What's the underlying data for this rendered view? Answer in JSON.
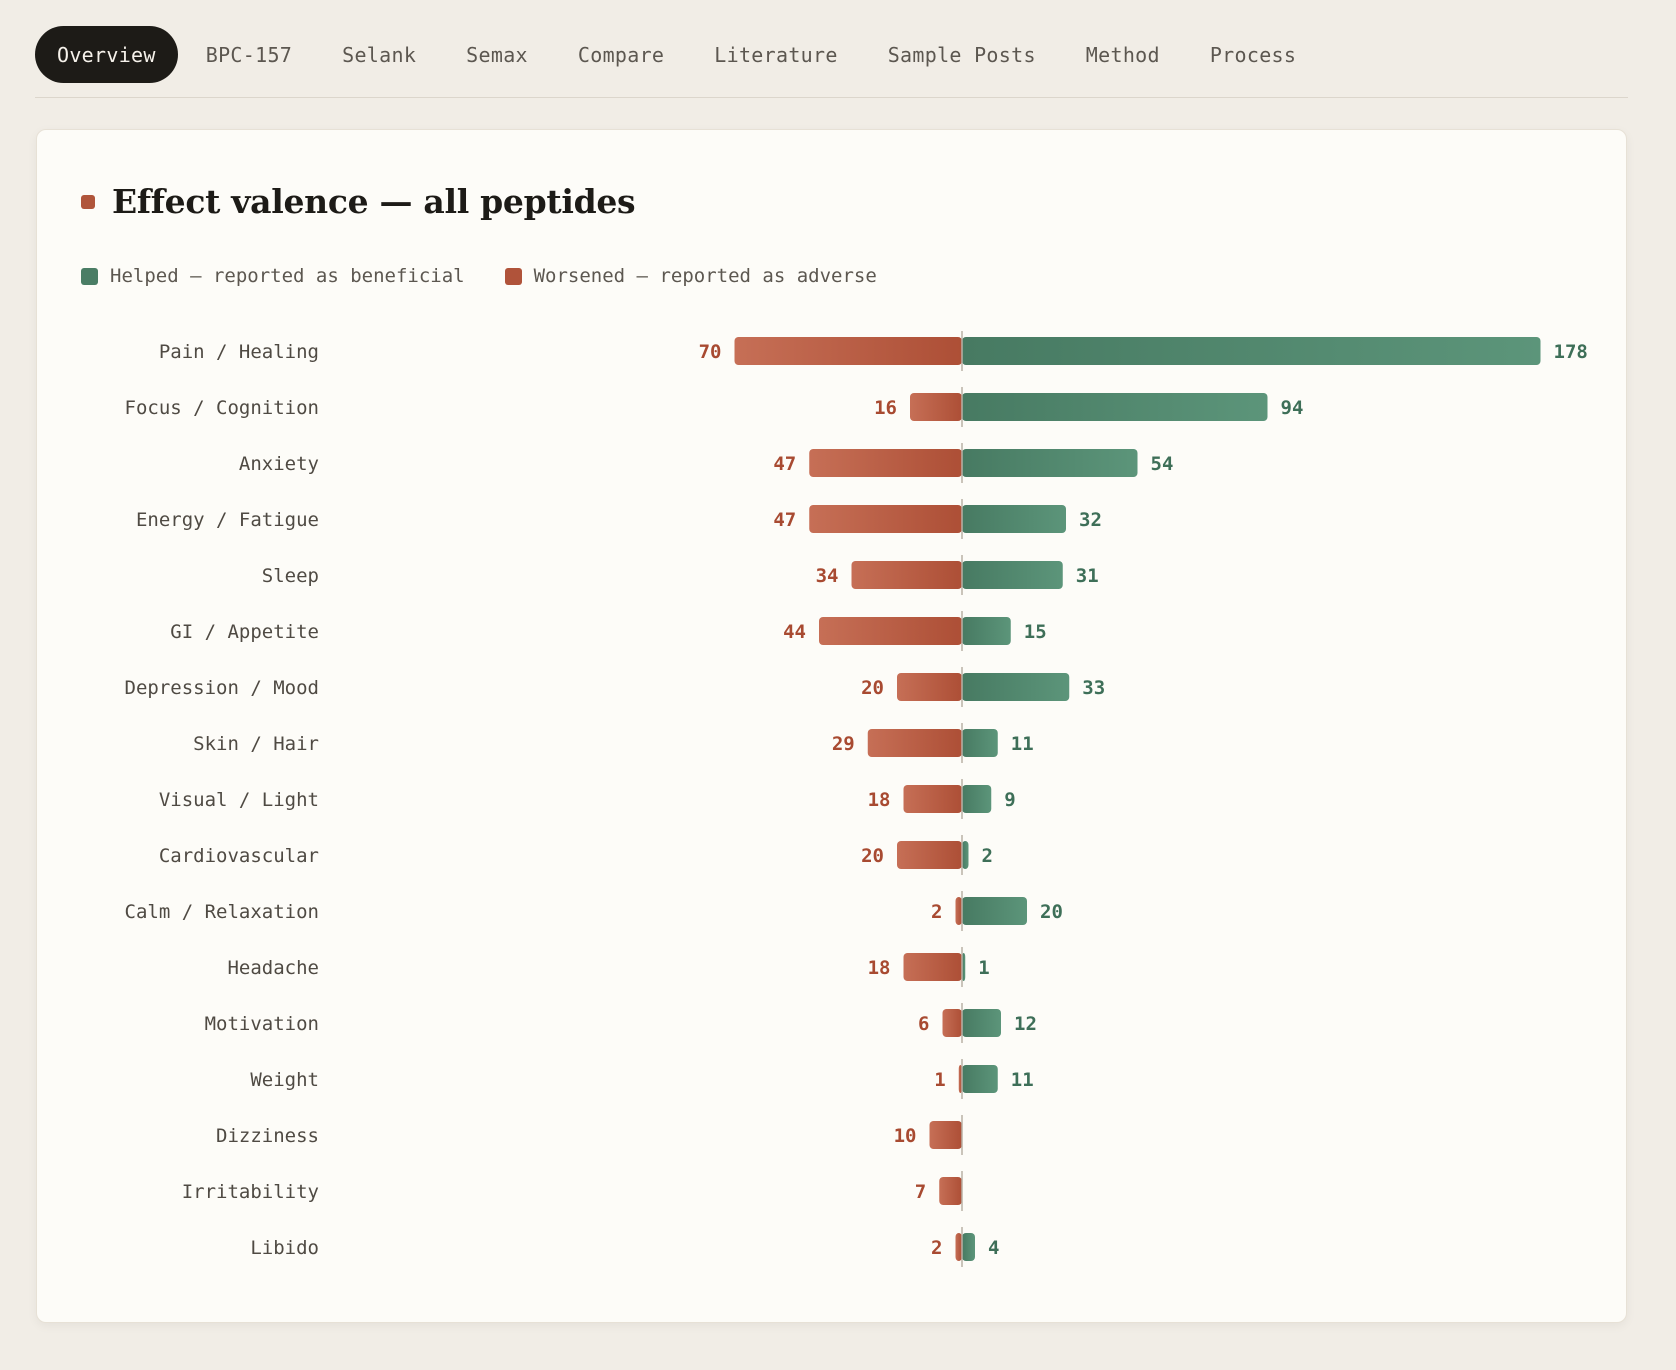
{
  "tabs": [
    {
      "label": "Overview",
      "active": true
    },
    {
      "label": "BPC-157"
    },
    {
      "label": "Selank"
    },
    {
      "label": "Semax"
    },
    {
      "label": "Compare"
    },
    {
      "label": "Literature"
    },
    {
      "label": "Sample Posts"
    },
    {
      "label": "Method"
    },
    {
      "label": "Process"
    }
  ],
  "card": {
    "title": "Effect valence — all peptides",
    "legend": {
      "helped": "Helped — reported as beneficial",
      "worsened": "Worsened — reported as adverse"
    }
  },
  "colors": {
    "helped": "#4a7d65",
    "helped_light": "#5b9479",
    "worsened": "#b0533a",
    "worsened_light": "#c46c53",
    "helped_text": "#3e6f58",
    "worsened_text": "#a84a31",
    "active_tab": "#1d1b17"
  },
  "chart_data": {
    "type": "bar",
    "orientation": "horizontal-diverging",
    "categories": [
      "Pain / Healing",
      "Focus / Cognition",
      "Anxiety",
      "Energy / Fatigue",
      "Sleep",
      "GI / Appetite",
      "Depression / Mood",
      "Skin / Hair",
      "Visual / Light",
      "Cardiovascular",
      "Calm / Relaxation",
      "Headache",
      "Motivation",
      "Weight",
      "Dizziness",
      "Irritability",
      "Libido"
    ],
    "series": [
      {
        "name": "Helped — reported as beneficial",
        "values": [
          178,
          94,
          54,
          32,
          31,
          15,
          33,
          11,
          9,
          2,
          20,
          1,
          12,
          11,
          0,
          0,
          4
        ]
      },
      {
        "name": "Worsened — reported as adverse",
        "values": [
          70,
          16,
          47,
          47,
          34,
          44,
          20,
          29,
          18,
          20,
          2,
          18,
          6,
          1,
          10,
          7,
          2
        ]
      }
    ],
    "title": "Effect valence — all peptides",
    "legend_position": "top-left",
    "grid": false
  }
}
